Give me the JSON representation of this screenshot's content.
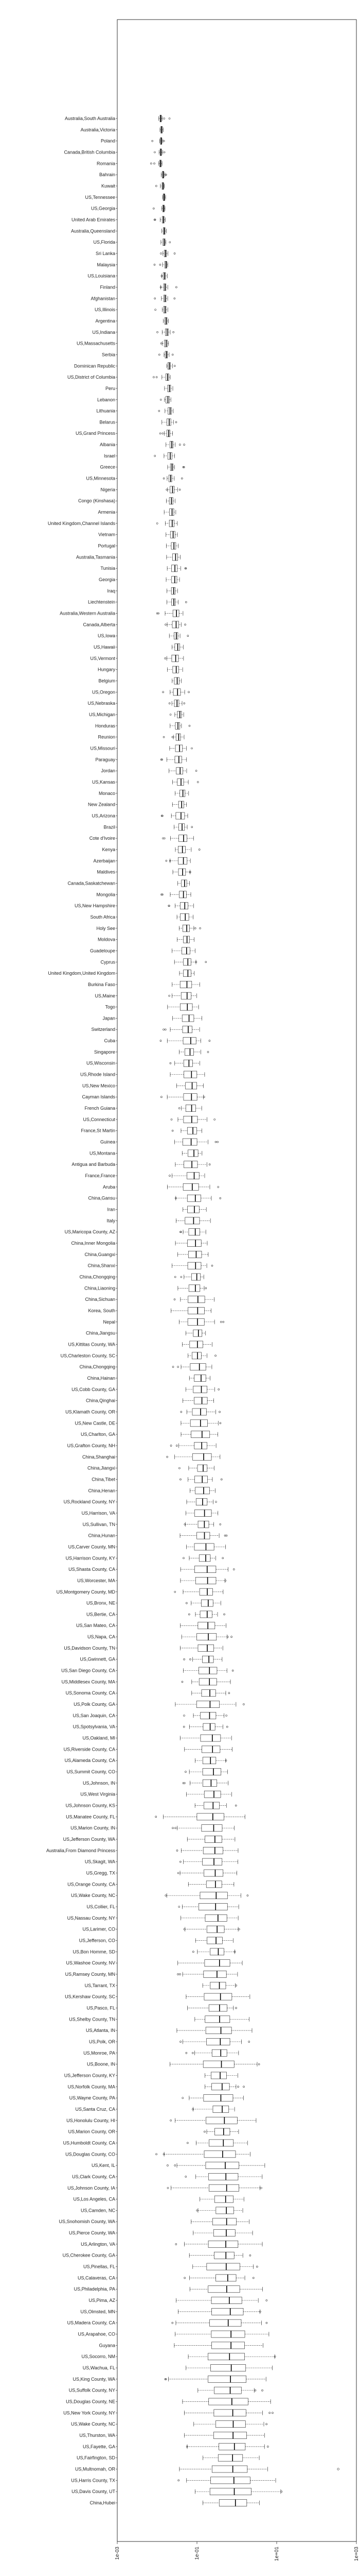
{
  "chart_data": {
    "type": "boxplot",
    "orientation": "horizontal",
    "x_scale": "log",
    "xlim": [
      0.001,
      1000
    ],
    "x_ticks": [
      {
        "value": 0.001,
        "label": "1e-03"
      },
      {
        "value": 0.1,
        "label": "1e-01"
      },
      {
        "value": 10,
        "label": "1e+01"
      },
      {
        "value": 1000,
        "label": "1e+03"
      }
    ],
    "grid": false,
    "categories": [
      "Australia,South Australia",
      "Australia,Victoria",
      "Poland",
      "Canada,British Columbia",
      "Romania",
      "Bahrain",
      "Kuwait",
      "US,Tennessee",
      "US,Georgia",
      "United Arab Emirates",
      "Australia,Queensland",
      "US,Florida",
      "Sri Lanka",
      "Malaysia",
      "US,Louisiana",
      "Finland",
      "Afghanistan",
      "US,Illinois",
      "Argentina",
      "US,Indiana",
      "US,Massachusetts",
      "Serbia",
      "Dominican Republic",
      "US,District of Columbia",
      "Peru",
      "Lebanon",
      "Lithuania",
      "Belarus",
      "US,Grand Princess",
      "Albania",
      "Israel",
      "Greece",
      "US,Minnesota",
      "Nigeria",
      "Congo (Kinshasa)",
      "Armenia",
      "United Kingdom,Channel Islands",
      "Vietnam",
      "Portugal",
      "Australia,Tasmania",
      "Tunisia",
      "Georgia",
      "Iraq",
      "Liechtenstein",
      "Australia,Western Australia",
      "Canada,Alberta",
      "US,Iowa",
      "US,Hawaii",
      "US,Vermont",
      "Hungary",
      "Belgium",
      "US,Oregon",
      "US,Nebraska",
      "US,Michigan",
      "Honduras",
      "Reunion",
      "US,Missouri",
      "Paraguay",
      "Jordan",
      "US,Kansas",
      "Monaco",
      "New Zealand",
      "US,Arizona",
      "Brazil",
      "Cote d'Ivoire",
      "Kenya",
      "Azerbaijan",
      "Maldives",
      "Canada,Saskatchewan",
      "Mongolia",
      "US,New Hampshire",
      "South Africa",
      "Holy See",
      "Moldova",
      "Guadeloupe",
      "Cyprus",
      "United Kingdom,United Kingdom",
      "Burkina Faso",
      "US,Maine",
      "Togo",
      "Japan",
      "Switzerland",
      "Cuba",
      "Singapore",
      "US,Wisconsin",
      "US,Rhode Island",
      "US,New Mexico",
      "Cayman Islands",
      "French Guiana",
      "US,Connecticut",
      "France,St Martin",
      "Guinea",
      "US,Montana",
      "Antigua and Barbuda",
      "France,France",
      "Aruba",
      "China,Gansu",
      "Iran",
      "Italy",
      "US,Maricopa County, AZ",
      "China,Inner Mongolia",
      "China,Guangxi",
      "China,Shanxi",
      "China,Chongqing",
      "China,Liaoning",
      "China,Sichuan",
      "Korea, South",
      "Nepal",
      "China,Jiangsu",
      "US,Kittitas County, WA",
      "US,Charleston County, SC",
      "China,Chongqing",
      "China,Hainan",
      "US,Cobb County, GA",
      "China,Qinghai",
      "US,Klamath County, OR",
      "US,New Castle, DE",
      "US,Charlton, GA",
      "US,Grafton County, NH",
      "China,Shanghai",
      "China,Jiangxi",
      "China,Tibet",
      "China,Henan",
      "US,Rockland County, NY",
      "US,Harrison, VA",
      "US,Sullivan, TN",
      "China,Hunan",
      "US,Carver County, MN",
      "US,Harrison County, KY",
      "US,Shasta County, CA",
      "US,Worcester, MA",
      "US,Montgomery County, MD",
      "US,Bronx, NE",
      "US,Bertie, CA",
      "US,San Mateo, CA",
      "US,Napa, CA",
      "US,Davidson County, TN",
      "US,Gwinnett, GA",
      "US,San Diego County, CA",
      "US,Middlesex County, MA",
      "US,Sonoma County, CA",
      "US,Polk County, GA",
      "US,San Joaquin, CA",
      "US,Spotsylvania, VA",
      "US,Oakland, MI",
      "US,Riverside County, CA",
      "US,Alameda County, CA",
      "US,Summit County, CO",
      "US,Johnson, IN",
      "US,West Virginia",
      "US,Johnson County, KS",
      "US,Manatee County, FL",
      "US,Marion County, IN",
      "US,Jefferson County, WA",
      "Australia,From Diamond Princess",
      "US,Skagit, WA",
      "US,Gregg, TX",
      "US,Orange County, CA",
      "US,Wake County, NC",
      "US,Collier, FL",
      "US,Nassau County, NY",
      "US,Larimer, CO",
      "US,Jefferson, CO",
      "US,Bon Homme, SD",
      "US,Washoe County, NV",
      "US,Ramsey County, MN",
      "US,Tarrant, TX",
      "US,Kershaw County, SC",
      "US,Pasco, FL",
      "US,Shelby County, TN",
      "US,Atlanta, IN",
      "US,Polk, OR",
      "US,Monroe, PA",
      "US,Boone, IN",
      "US,Jefferson County, KY",
      "US,Norfolk County, MA",
      "US,Wayne County, PA",
      "US,Santa Cruz, CA",
      "US,Honolulu County, HI",
      "US,Marion County, OR",
      "US,Humboldt County, CA",
      "US,Douglas County, CO",
      "US,Kent, IL",
      "US,Clark County, CA",
      "US,Johnson County, IA",
      "US,Los Angeles, CA",
      "US,Camden, NC",
      "US,Snohomish County, WA",
      "US,Pierce County, WA",
      "US,Arlington, VA",
      "US,Cherokee County, GA",
      "US,Pinellas, FL",
      "US,Calaveras, CA",
      "US,Philadelphia, PA",
      "US,Pima, AZ",
      "US,Olmsted, MN",
      "US,Madera County, CA",
      "US,Arapahoe, CO",
      "Guyana",
      "US,Socorro, NM",
      "US,Wachua, FL",
      "US,King County, WA",
      "US,Suffolk County, NY",
      "US,Douglas County, NE",
      "US,New York County, NY",
      "US,Wake County, NC",
      "US,Thurston, WA",
      "US,Fayette, GA",
      "US,Fairfington, SD",
      "US,Multnomah, OR",
      "US,Harris County, TX",
      "US,Davis County, UT",
      "China,Hubei"
    ],
    "summary": "Per-category box plots with whiskers and outlier points on a log-scaled x axis; medians rise from about 0.01 at the top category to about 1 at the bottom category, with a single far outlier near the lower right."
  }
}
